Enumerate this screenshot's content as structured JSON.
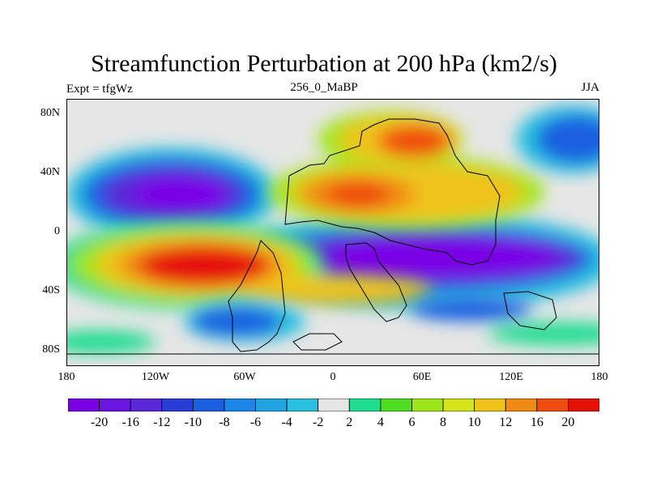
{
  "title": "Streamfunction Perturbation at 200 hPa (km2/s)",
  "left_label": "Expt = tfgWz",
  "center_label": "256_0_MaBP",
  "right_label": "JJA",
  "lat_labels": [
    "80N",
    "40N",
    "0",
    "40S",
    "80S"
  ],
  "lon_labels": [
    "180",
    "120W",
    "60W",
    "0",
    "60E",
    "120E",
    "180"
  ],
  "colorbar": {
    "labels": [
      "-20",
      "-16",
      "-12",
      "-10",
      "-8",
      "-6",
      "-4",
      "-2",
      "2",
      "4",
      "6",
      "8",
      "10",
      "12",
      "16",
      "20"
    ],
    "colors": [
      "#7a00e6",
      "#6a14e0",
      "#5a28d8",
      "#2a3cd6",
      "#1d5fe0",
      "#1c86e8",
      "#21a3e2",
      "#28c0df",
      "#e6e6e6",
      "#1fdc8e",
      "#50dc20",
      "#9ee61a",
      "#d6e41a",
      "#f0c21a",
      "#f08a14",
      "#f04c10",
      "#e61008"
    ]
  }
}
